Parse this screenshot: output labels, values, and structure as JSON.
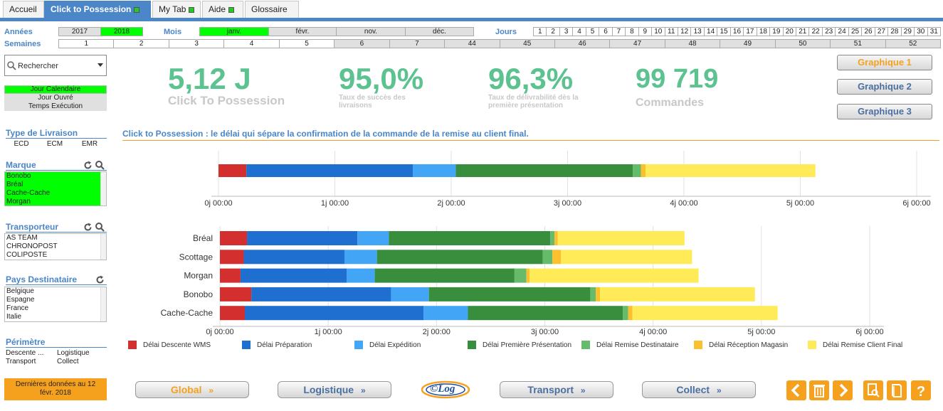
{
  "tabs": [
    {
      "label": "Accueil"
    },
    {
      "label": "Click to Possession"
    },
    {
      "label": "My Tab"
    },
    {
      "label": "Aide"
    },
    {
      "label": "Glossaire"
    }
  ],
  "filters": {
    "annees_label": "Années",
    "annees": [
      "2017",
      "2018"
    ],
    "annees_selected": "2018",
    "mois_label": "Mois",
    "mois": [
      "janv.",
      "févr.",
      "nov.",
      "déc."
    ],
    "mois_selected": "janv.",
    "jours_label": "Jours",
    "jours": [
      "1",
      "2",
      "3",
      "4",
      "5",
      "6",
      "7",
      "8",
      "9",
      "10",
      "11",
      "12",
      "13",
      "14",
      "15",
      "16",
      "17",
      "18",
      "19",
      "20",
      "21",
      "22",
      "23",
      "24",
      "25",
      "26",
      "27",
      "28",
      "29",
      "30",
      "31"
    ],
    "semaines_label": "Semaines",
    "semaines": [
      "1",
      "2",
      "3",
      "4",
      "5",
      "6",
      "7",
      "44",
      "45",
      "46",
      "47",
      "48",
      "49",
      "50",
      "51",
      "52"
    ]
  },
  "search": {
    "placeholder": "Rechercher"
  },
  "mode_buttons": [
    "Jour Calendaire",
    "Jour Ouvré",
    "Temps Exécution"
  ],
  "mode_selected": "Jour Calendaire",
  "sidebar": {
    "type_livraison": {
      "title": "Type de Livraison",
      "items": [
        "ECD",
        "ECM",
        "EMR"
      ]
    },
    "marque": {
      "title": "Marque",
      "items": [
        "Bonobo",
        "Bréal",
        "Cache-Cache",
        "Morgan"
      ]
    },
    "transporteur": {
      "title": "Transporteur",
      "items": [
        "AS TEAM",
        "CHRONOPOST",
        "COLIPOSTE"
      ]
    },
    "pays": {
      "title": "Pays Destinataire",
      "items": [
        "Belgique",
        "Espagne",
        "France",
        "Italie"
      ]
    },
    "perimetre": {
      "title": "Périmètre",
      "items": [
        "Descente ...",
        "Logistique",
        "Transport",
        "Collect"
      ]
    },
    "last_data": "Dernières données au 12 févr. 2018"
  },
  "kpis": [
    {
      "value": "5,12 J",
      "label": "Click To Possession"
    },
    {
      "value": "95,0%",
      "label": "Taux de succès des livraisons"
    },
    {
      "value": "96,3%",
      "label": "Taux de délivrabilité dès la première présentation"
    },
    {
      "value": "99 719",
      "label": "Commandes"
    }
  ],
  "graph_buttons": [
    "Graphique 1",
    "Graphique 2",
    "Graphique 3"
  ],
  "graph_selected": "Graphique 1",
  "chart_title": "Click to Possession : le délai qui sépare la confirmation de la commande de la remise au client final.",
  "nav_buttons": [
    "Global",
    "Logistique",
    "Transport",
    "Collect"
  ],
  "nav_arrow": "»",
  "logo_text": "©Log",
  "colors": {
    "accent": "#4a86c8",
    "kpi_green": "#5cc28f",
    "orange": "#f5a11e",
    "selected": "#00ff00"
  },
  "chart_data": {
    "type": "bar",
    "orientation": "horizontal-stacked",
    "x_ticks": [
      "0j 00:00",
      "1j 00:00",
      "2j 00:00",
      "3j 00:00",
      "4j 00:00",
      "5j 00:00",
      "6j 00:00"
    ],
    "x_unit": "days",
    "xlim": [
      0,
      6
    ],
    "series": [
      {
        "name": "Délai Descente WMS",
        "color": "#d32f2f"
      },
      {
        "name": "Délai Préparation",
        "color": "#1e6fcf"
      },
      {
        "name": "Délai Expédition",
        "color": "#42a5f5"
      },
      {
        "name": "Délai Première Présentation",
        "color": "#388e3c"
      },
      {
        "name": "Délai Remise Destinataire",
        "color": "#66bb6a"
      },
      {
        "name": "Délai Réception Magasin",
        "color": "#fbc02d"
      },
      {
        "name": "Délai Remise Client Final",
        "color": "#ffeb57"
      }
    ],
    "total": {
      "values": [
        0.24,
        1.43,
        0.37,
        1.52,
        0.07,
        0.04,
        1.46
      ]
    },
    "categories": [
      "Bréal",
      "Scottage",
      "Morgan",
      "Bonobo",
      "Cache-Cache"
    ],
    "by_category": [
      [
        0.25,
        1.02,
        0.29,
        1.49,
        0.04,
        0.03,
        1.17
      ],
      [
        0.22,
        0.93,
        0.3,
        1.53,
        0.09,
        0.08,
        1.21
      ],
      [
        0.19,
        0.98,
        0.26,
        1.29,
        0.11,
        0.03,
        1.56
      ],
      [
        0.29,
        1.29,
        0.35,
        1.49,
        0.05,
        0.04,
        1.43
      ],
      [
        0.23,
        1.65,
        0.41,
        1.43,
        0.05,
        0.04,
        1.34
      ]
    ]
  }
}
